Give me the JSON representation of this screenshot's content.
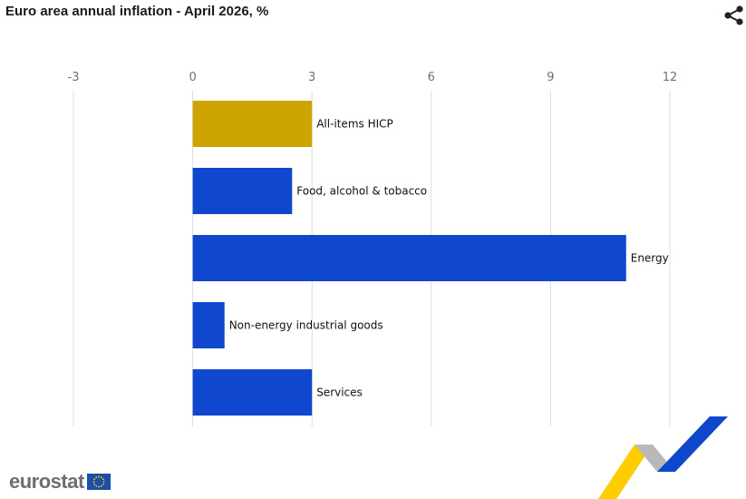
{
  "header": {
    "title": "Euro area annual inflation - April 2026, %",
    "share_icon": "share-icon"
  },
  "chart_data": {
    "type": "bar",
    "orientation": "horizontal",
    "title": "Euro area annual inflation - April 2026, %",
    "categories": [
      "All-items HICP",
      "Food, alcohol & tobacco",
      "Energy",
      "Non-energy industrial goods",
      "Services"
    ],
    "values": [
      3.0,
      2.5,
      10.9,
      0.8,
      3.0
    ],
    "colors": [
      "#cda400",
      "#0f47cf",
      "#0f47cf",
      "#0f47cf",
      "#0f47cf"
    ],
    "xlim": [
      -3,
      12
    ],
    "xticks": [
      "-3",
      "0",
      "3",
      "6",
      "9",
      "12"
    ],
    "grid": true,
    "axis_position": "top"
  },
  "footer": {
    "logo_text": "eurostat",
    "flag_icon": "eu-flag-icon"
  },
  "colors": {
    "highlight": "#cda400",
    "bar": "#0f47cf",
    "grid": "#dddddd",
    "logo_grey": "#6d6e71"
  }
}
